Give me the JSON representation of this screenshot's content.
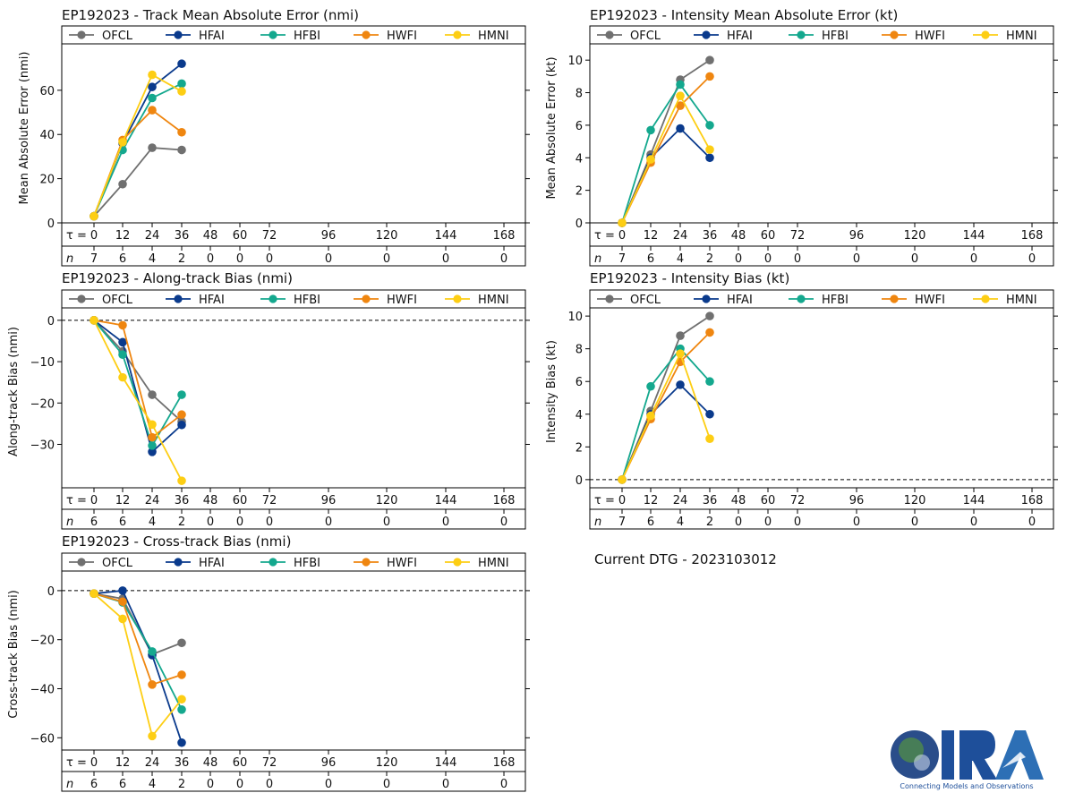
{
  "current_dtg": "Current DTG - 2023103012",
  "logo": {
    "name": "CIRA",
    "tagline": "Connecting Models and Observations"
  },
  "colors": {
    "OFCL": "#707070",
    "HFAI": "#0a3a8c",
    "HFBI": "#14a88e",
    "HWFI": "#ef8610",
    "HMNI": "#fdce14"
  },
  "chart_data": [
    {
      "id": "track-mae",
      "type": "line",
      "title": "EP192023 - Track Mean Absolute Error (nmi)",
      "ylabel": "Mean Absolute Error (nmi)",
      "ylim": [
        0,
        81
      ],
      "yticks": [
        0,
        20,
        40,
        60
      ],
      "dashed_zero": false,
      "legend": [
        "OFCL",
        "HFAI",
        "HFBI",
        "HWFI",
        "HMNI"
      ],
      "tau_label": "τ =",
      "n_label": "n",
      "tau": [
        0,
        12,
        24,
        36,
        48,
        60,
        72,
        96,
        120,
        144,
        168
      ],
      "n": [
        7,
        6,
        4,
        2,
        0,
        0,
        0,
        0,
        0,
        0,
        0
      ],
      "x": [
        0,
        12,
        24,
        36
      ],
      "series": [
        {
          "name": "OFCL",
          "values": [
            3,
            17.5,
            34,
            33
          ]
        },
        {
          "name": "HFAI",
          "values": [
            3,
            36,
            61.5,
            72
          ]
        },
        {
          "name": "HFBI",
          "values": [
            3,
            33,
            56.5,
            63
          ]
        },
        {
          "name": "HWFI",
          "values": [
            3,
            37.5,
            51,
            41
          ]
        },
        {
          "name": "HMNI",
          "values": [
            3,
            36.5,
            67,
            59.5
          ]
        }
      ]
    },
    {
      "id": "intensity-mae",
      "type": "line",
      "title": "EP192023 - Intensity Mean Absolute Error (kt)",
      "ylabel": "Mean Absolute Error (kt)",
      "ylim": [
        0,
        11
      ],
      "yticks": [
        0,
        2,
        4,
        6,
        8,
        10
      ],
      "dashed_zero": false,
      "legend": [
        "OFCL",
        "HFAI",
        "HFBI",
        "HWFI",
        "HMNI"
      ],
      "tau_label": "τ =",
      "n_label": "n",
      "tau": [
        0,
        12,
        24,
        36,
        48,
        60,
        72,
        96,
        120,
        144,
        168
      ],
      "n": [
        7,
        6,
        4,
        2,
        0,
        0,
        0,
        0,
        0,
        0,
        0
      ],
      "x": [
        0,
        12,
        24,
        36
      ],
      "series": [
        {
          "name": "OFCL",
          "values": [
            0,
            4.2,
            8.8,
            10
          ]
        },
        {
          "name": "HFAI",
          "values": [
            0,
            4,
            5.8,
            4
          ]
        },
        {
          "name": "HFBI",
          "values": [
            0,
            5.7,
            8.5,
            6
          ]
        },
        {
          "name": "HWFI",
          "values": [
            0,
            3.7,
            7.2,
            9
          ]
        },
        {
          "name": "HMNI",
          "values": [
            0,
            3.9,
            7.8,
            4.5
          ]
        }
      ]
    },
    {
      "id": "along-track-bias",
      "type": "line",
      "title": "EP192023 - Along-track Bias (nmi)",
      "ylabel": "Along-track Bias (nmi)",
      "ylim": [
        -40.5,
        3
      ],
      "yticks": [
        0,
        -10,
        -20,
        -30
      ],
      "dashed_zero": true,
      "legend": [
        "OFCL",
        "HFAI",
        "HFBI",
        "HWFI",
        "HMNI"
      ],
      "tau_label": "τ =",
      "n_label": "n",
      "tau": [
        0,
        12,
        24,
        36,
        48,
        60,
        72,
        96,
        120,
        144,
        168
      ],
      "n": [
        6,
        6,
        4,
        2,
        0,
        0,
        0,
        0,
        0,
        0,
        0
      ],
      "x": [
        0,
        12,
        24,
        36
      ],
      "series": [
        {
          "name": "OFCL",
          "values": [
            0,
            -7.5,
            -18,
            -24.5
          ]
        },
        {
          "name": "HFAI",
          "values": [
            0,
            -5.3,
            -31.8,
            -25.3
          ]
        },
        {
          "name": "HFBI",
          "values": [
            0,
            -8.3,
            -30.3,
            -18
          ]
        },
        {
          "name": "HWFI",
          "values": [
            0,
            -1.2,
            -28.3,
            -22.8
          ]
        },
        {
          "name": "HMNI",
          "values": [
            0,
            -13.8,
            -25.2,
            -38.8
          ]
        }
      ]
    },
    {
      "id": "intensity-bias",
      "type": "line",
      "title": "EP192023 - Intensity Bias (kt)",
      "ylabel": "Intensity Bias (kt)",
      "ylim": [
        -0.5,
        10.5
      ],
      "yticks": [
        0,
        2,
        4,
        6,
        8,
        10
      ],
      "dashed_zero": true,
      "legend": [
        "OFCL",
        "HFAI",
        "HFBI",
        "HWFI",
        "HMNI"
      ],
      "tau_label": "τ =",
      "n_label": "n",
      "tau": [
        0,
        12,
        24,
        36,
        48,
        60,
        72,
        96,
        120,
        144,
        168
      ],
      "n": [
        7,
        6,
        4,
        2,
        0,
        0,
        0,
        0,
        0,
        0,
        0
      ],
      "x": [
        0,
        12,
        24,
        36
      ],
      "series": [
        {
          "name": "OFCL",
          "values": [
            0,
            4.2,
            8.8,
            10
          ]
        },
        {
          "name": "HFAI",
          "values": [
            0,
            4,
            5.8,
            4
          ]
        },
        {
          "name": "HFBI",
          "values": [
            0,
            5.7,
            8,
            6
          ]
        },
        {
          "name": "HWFI",
          "values": [
            0,
            3.7,
            7.2,
            9
          ]
        },
        {
          "name": "HMNI",
          "values": [
            0,
            3.9,
            7.7,
            2.5
          ]
        }
      ]
    },
    {
      "id": "cross-track-bias",
      "type": "line",
      "title": "EP192023 - Cross-track Bias (nmi)",
      "ylabel": "Cross-track Bias (nmi)",
      "ylim": [
        -65,
        8
      ],
      "yticks": [
        0,
        -20,
        -40,
        -60
      ],
      "dashed_zero": true,
      "legend": [
        "OFCL",
        "HFAI",
        "HFBI",
        "HWFI",
        "HMNI"
      ],
      "tau_label": "τ =",
      "n_label": "n",
      "tau": [
        0,
        12,
        24,
        36,
        48,
        60,
        72,
        96,
        120,
        144,
        168
      ],
      "n": [
        6,
        6,
        4,
        2,
        0,
        0,
        0,
        0,
        0,
        0,
        0
      ],
      "x": [
        0,
        12,
        24,
        36
      ],
      "series": [
        {
          "name": "OFCL",
          "values": [
            -1.2,
            -3.3,
            -26,
            -21.3
          ]
        },
        {
          "name": "HFAI",
          "values": [
            -1.2,
            0,
            -26.3,
            -62
          ]
        },
        {
          "name": "HFBI",
          "values": [
            -1.2,
            -4.8,
            -24.8,
            -48.5
          ]
        },
        {
          "name": "HWFI",
          "values": [
            -1.2,
            -4.5,
            -38.3,
            -34.3
          ]
        },
        {
          "name": "HMNI",
          "values": [
            -1.2,
            -11.5,
            -59.3,
            -44.3
          ]
        }
      ]
    }
  ]
}
